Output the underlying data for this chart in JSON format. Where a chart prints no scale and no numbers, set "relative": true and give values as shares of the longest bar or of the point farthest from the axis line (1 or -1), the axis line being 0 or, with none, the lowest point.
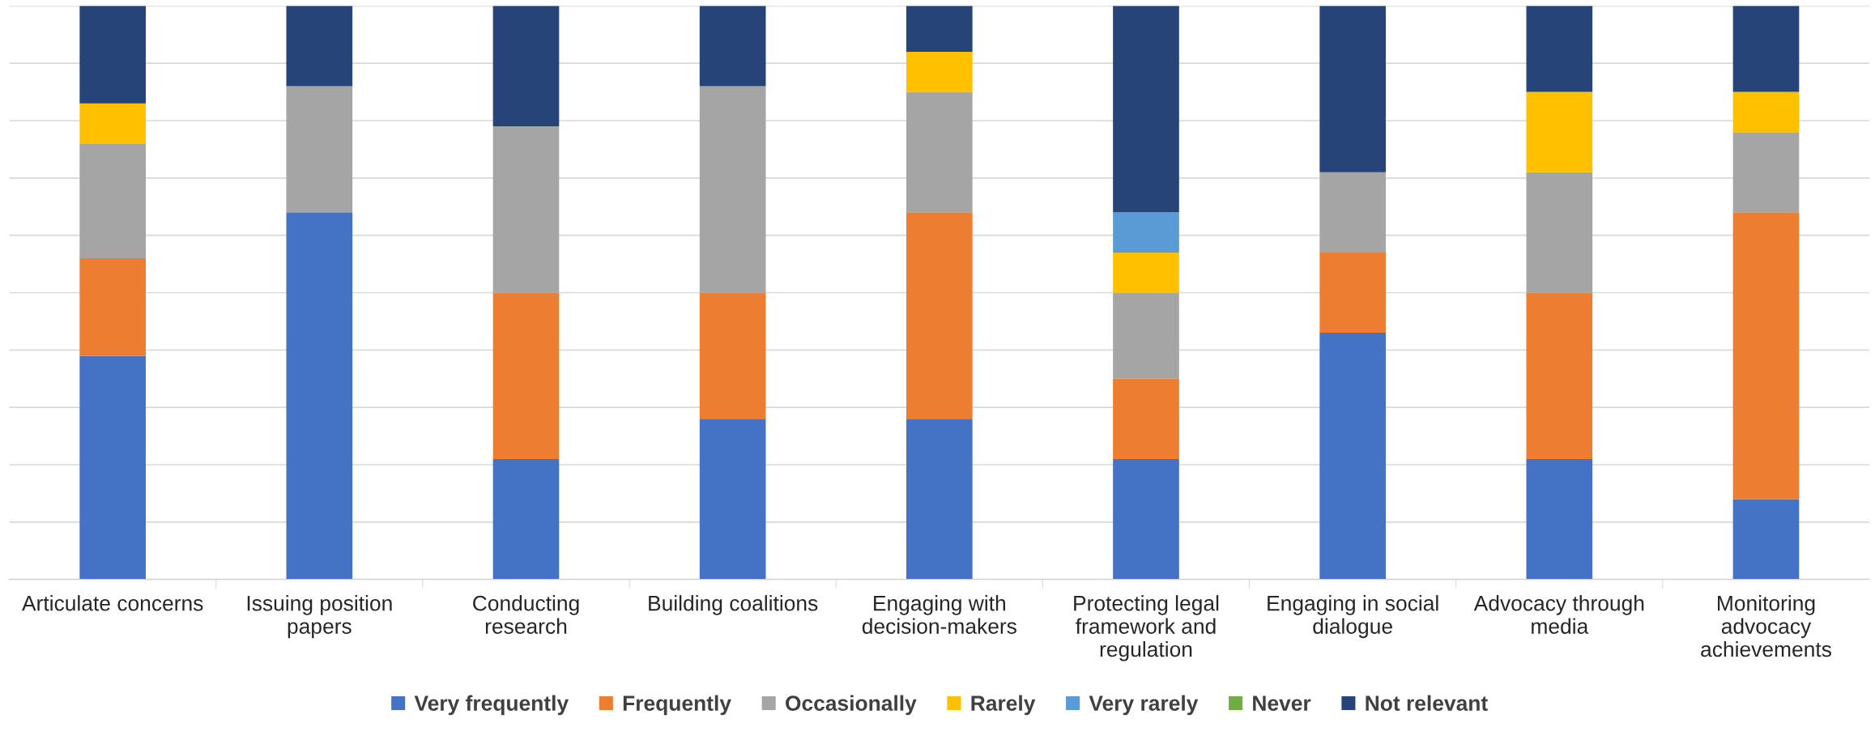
{
  "chart_data": {
    "type": "bar",
    "stacked": true,
    "relative": true,
    "grid": "y",
    "legend": "bottom",
    "categories": [
      "Articulate concerns",
      "Issuing position\npapers",
      "Conducting\nresearch",
      "Building coalitions",
      "Engaging with\ndecision-makers",
      "Protecting legal\nframework and\nregulation",
      "Engaging in social\ndialogue",
      "Advocacy through\nmedia",
      "Monitoring\nadvocacy\nachievements"
    ],
    "series": [
      {
        "name": "Very frequently",
        "color": "#4472c4",
        "values": [
          0.39,
          0.64,
          0.21,
          0.28,
          0.28,
          0.21,
          0.43,
          0.21,
          0.14
        ]
      },
      {
        "name": "Frequently",
        "color": "#ed7d31",
        "values": [
          0.17,
          0,
          0.29,
          0.22,
          0.36,
          0.14,
          0.14,
          0.29,
          0.5
        ]
      },
      {
        "name": "Occasionally",
        "color": "#a5a5a5",
        "values": [
          0.2,
          0.22,
          0.29,
          0.36,
          0.21,
          0.15,
          0.14,
          0.21,
          0.14
        ]
      },
      {
        "name": "Rarely",
        "color": "#ffc000",
        "values": [
          0.07,
          0,
          0,
          0,
          0.07,
          0.07,
          0,
          0.14,
          0.07
        ]
      },
      {
        "name": "Very rarely",
        "color": "#5b9bd5",
        "values": [
          0,
          0,
          0,
          0,
          0,
          0.07,
          0,
          0,
          0
        ]
      },
      {
        "name": "Never",
        "color": "#70ad47",
        "values": [
          0,
          0,
          0,
          0,
          0,
          0,
          0,
          0,
          0
        ]
      },
      {
        "name": "Not relevant",
        "color": "#264478",
        "values": [
          0.17,
          0.14,
          0.21,
          0.14,
          0.08,
          0.36,
          0.29,
          0.15,
          0.15
        ]
      }
    ]
  }
}
